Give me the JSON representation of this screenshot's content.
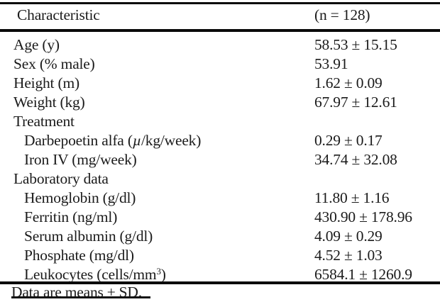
{
  "page": {
    "background": "#ffffff",
    "text_color": "#1b1b1b",
    "rule_color": "#0a0a0a"
  },
  "table": {
    "columns": [
      {
        "label": "Characteristic"
      },
      {
        "label": "(n = 128)"
      }
    ],
    "rows": [
      {
        "label": "Age (y)",
        "value": "58.53 ± 15.15",
        "indent": false
      },
      {
        "label": "Sex (% male)",
        "value": "53.91",
        "indent": false
      },
      {
        "label": "Height (m)",
        "value": "1.62 ± 0.09",
        "indent": false
      },
      {
        "label": "Weight (kg)",
        "value": "67.97 ± 12.61",
        "indent": false
      },
      {
        "label": "Treatment",
        "value": "",
        "indent": false,
        "is_group": true
      },
      {
        "label_pre": "Darbepoetin alfa (",
        "label_mu": "µ",
        "label_post": "/kg/week)",
        "value": "0.29 ± 0.17",
        "indent": true
      },
      {
        "label": "Iron IV (mg/week)",
        "value": "34.74 ± 32.08",
        "indent": true
      },
      {
        "label": "Laboratory data",
        "value": "",
        "indent": false,
        "is_group": true
      },
      {
        "label": "Hemoglobin (g/dl)",
        "value": "11.80 ± 1.16",
        "indent": true
      },
      {
        "label": "Ferritin (ng/ml)",
        "value": "430.90 ± 178.96",
        "indent": true
      },
      {
        "label": "Serum albumin (g/dl)",
        "value": "4.09 ± 0.29",
        "indent": true
      },
      {
        "label": "Phosphate (mg/dl)",
        "value": "4.52 ± 1.03",
        "indent": true
      },
      {
        "label_pre": "Leukocytes (cells/mm",
        "label_sup": "3",
        "label_post": ")",
        "value": "6584.1 ± 1260.9",
        "indent": true
      }
    ],
    "footnote": "Data are means ± SD."
  }
}
